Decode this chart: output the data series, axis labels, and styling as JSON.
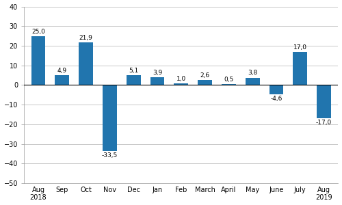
{
  "categories": [
    "Aug\n2018",
    "Sep",
    "Oct",
    "Nov",
    "Dec",
    "Jan",
    "Feb",
    "March",
    "April",
    "May",
    "June",
    "July",
    "Aug\n2019"
  ],
  "values": [
    25.0,
    4.9,
    21.9,
    -33.5,
    5.1,
    3.9,
    1.0,
    2.6,
    0.5,
    3.8,
    -4.6,
    17.0,
    -17.0
  ],
  "bar_color": "#2175ae",
  "ylim": [
    -50,
    40
  ],
  "yticks": [
    -50,
    -40,
    -30,
    -20,
    -10,
    0,
    10,
    20,
    30,
    40
  ],
  "label_fontsize": 6.5,
  "tick_fontsize": 7.0,
  "background_color": "#ffffff",
  "grid_color": "#c8c8c8"
}
